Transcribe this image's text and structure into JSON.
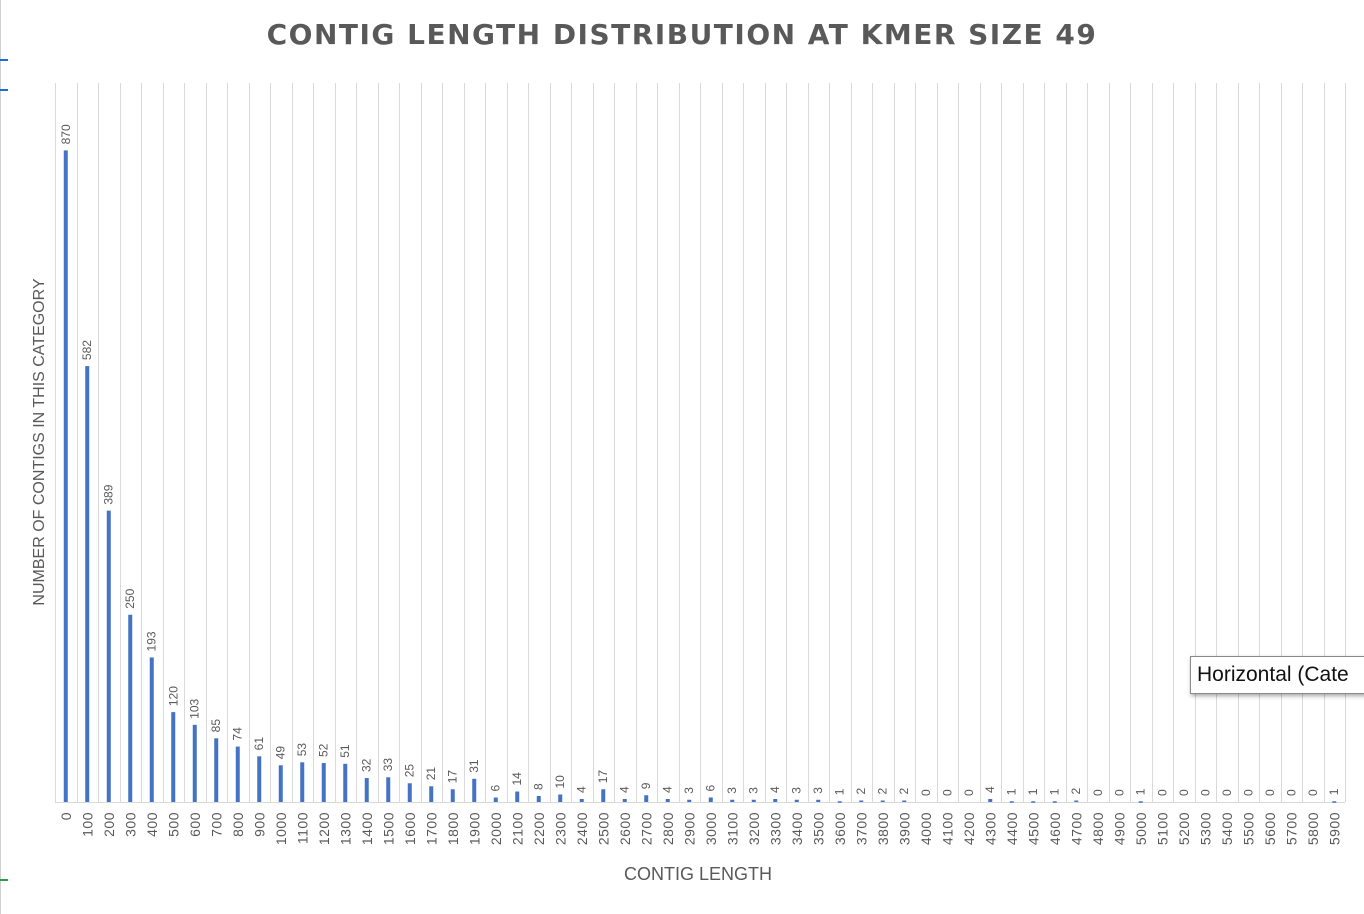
{
  "colors": {
    "bar": "#4472C4",
    "gridline": "#d9d9d9",
    "text": "#595959"
  },
  "tooltip": {
    "text": "Horizontal (Cate"
  },
  "chart_data": {
    "type": "bar",
    "title": "CONTIG LENGTH DISTRIBUTION AT KMER SIZE 49",
    "xlabel": "CONTIG LENGTH",
    "ylabel": "NUMBER OF CONTIGS IN THIS CATEGORY",
    "ylim": [
      0,
      960
    ],
    "grid": "vertical",
    "legend": "none",
    "categories": [
      "0",
      "100",
      "200",
      "300",
      "400",
      "500",
      "600",
      "700",
      "800",
      "900",
      "1000",
      "1100",
      "1200",
      "1300",
      "1400",
      "1500",
      "1600",
      "1700",
      "1800",
      "1900",
      "2000",
      "2100",
      "2200",
      "2300",
      "2400",
      "2500",
      "2600",
      "2700",
      "2800",
      "2900",
      "3000",
      "3100",
      "3200",
      "3300",
      "3400",
      "3500",
      "3600",
      "3700",
      "3800",
      "3900",
      "4000",
      "4100",
      "4200",
      "4300",
      "4400",
      "4500",
      "4600",
      "4700",
      "4800",
      "4900",
      "5000",
      "5100",
      "5200",
      "5300",
      "5400",
      "5500",
      "5600",
      "5700",
      "5800",
      "5900"
    ],
    "values": [
      870,
      582,
      389,
      250,
      193,
      120,
      103,
      85,
      74,
      61,
      49,
      53,
      52,
      51,
      32,
      33,
      25,
      21,
      17,
      31,
      6,
      14,
      8,
      10,
      4,
      17,
      4,
      9,
      4,
      3,
      6,
      3,
      3,
      4,
      3,
      3,
      1,
      2,
      2,
      2,
      0,
      0,
      0,
      4,
      1,
      1,
      1,
      2,
      0,
      0,
      1,
      0,
      0,
      0,
      0,
      0,
      0,
      0,
      0,
      1
    ]
  }
}
